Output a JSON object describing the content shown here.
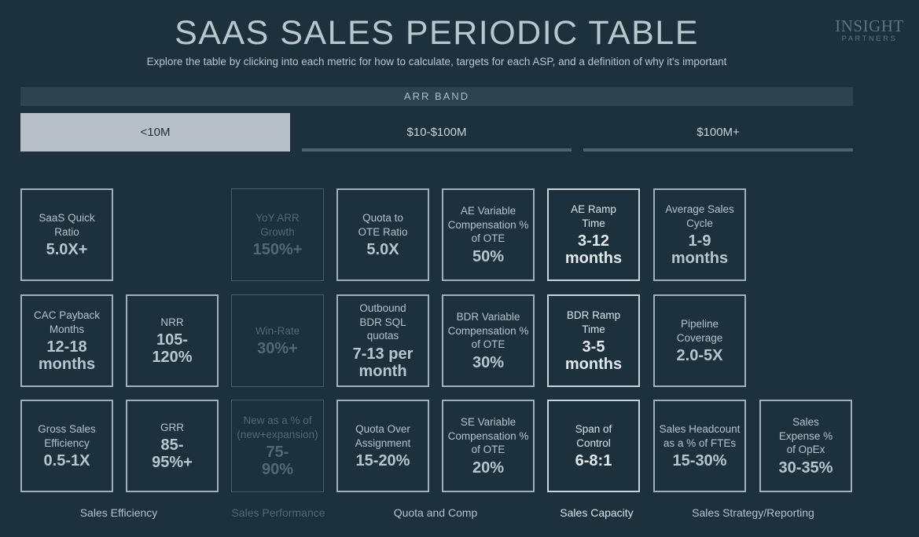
{
  "header": {
    "title": "SAAS SALES PERIODIC TABLE",
    "subtitle": "Explore the table by clicking into each metric for how to calculate, targets for each ASP, and a definition of why it's important"
  },
  "logo": {
    "line1": "INSIGHT",
    "line2": "PARTNERS"
  },
  "arr_band": {
    "label": "ARR BAND",
    "tabs": [
      {
        "label": "<10M",
        "active": true
      },
      {
        "label": "$10-$100M",
        "active": false
      },
      {
        "label": "$100M+",
        "active": false
      }
    ]
  },
  "metrics": {
    "saas_quick_ratio": {
      "name": "SaaS Quick Ratio",
      "value": "5.0X+"
    },
    "cac_payback": {
      "name": "CAC Payback Months",
      "value": "12-18 months"
    },
    "gross_sales_efficiency": {
      "name": "Gross Sales Efficiency",
      "value": "0.5-1X"
    },
    "nrr": {
      "name": "NRR",
      "value": "105-120%"
    },
    "grr": {
      "name": "GRR",
      "value": "85-95%+"
    },
    "yoy_arr_growth": {
      "name": "YoY ARR Growth",
      "value": "150%+"
    },
    "win_rate": {
      "name": "Win-Rate",
      "value": "30%+"
    },
    "new_pct": {
      "name": "New as a % of (new+expansion)",
      "value": "75-90%"
    },
    "quota_to_ote": {
      "name": "Quota to OTE Ratio",
      "value": "5.0X"
    },
    "outbound_bdr": {
      "name": "Outbound BDR SQL quotas",
      "value": "7-13 per month"
    },
    "quota_over_assignment": {
      "name": "Quota Over Assignment",
      "value": "15-20%"
    },
    "ae_variable": {
      "name": "AE Variable Compensation % of OTE",
      "value": "50%"
    },
    "bdr_variable": {
      "name": "BDR Variable Compensation % of OTE",
      "value": "30%"
    },
    "se_variable": {
      "name": "SE Variable Compensation % of OTE",
      "value": "20%"
    },
    "ae_ramp": {
      "name": "AE Ramp Time",
      "value": "3-12 months"
    },
    "bdr_ramp": {
      "name": "BDR Ramp Time",
      "value": "3-5 months"
    },
    "span_of_control": {
      "name": "Span of Control",
      "value": "6-8:1"
    },
    "avg_sales_cycle": {
      "name": "Average Sales Cycle",
      "value": "1-9 months"
    },
    "pipeline_coverage": {
      "name": "Pipeline Coverage",
      "value": "2.0-5X"
    },
    "sales_headcount": {
      "name": "Sales Headcount as a % of FTEs",
      "value": "15-30%"
    },
    "sales_expense": {
      "name": "Sales Expense % of OpEx",
      "value": "30-35%"
    }
  },
  "categories": {
    "sales_efficiency": "Sales Efficiency",
    "sales_performance": "Sales Performance",
    "quota_and_comp": "Quota and Comp",
    "sales_capacity": "Sales Capacity",
    "sales_strategy": "Sales Strategy/Reporting"
  }
}
